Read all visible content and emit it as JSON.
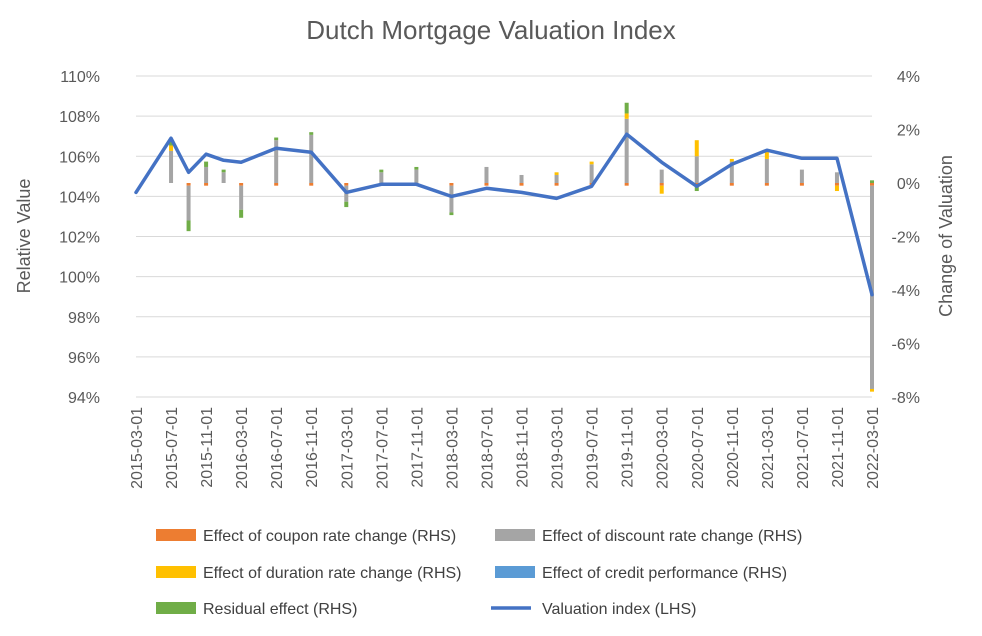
{
  "chart_data": {
    "type": "bar+line",
    "title": "Dutch Mortgage Valuation Index",
    "ylabel_left": "Relative Value",
    "ylabel_right": "Change of Valuation",
    "ylim_left": [
      94,
      110
    ],
    "ylim_right": [
      -8,
      4
    ],
    "left_ticks": [
      "94%",
      "96%",
      "98%",
      "100%",
      "102%",
      "104%",
      "106%",
      "108%",
      "110%"
    ],
    "left_tick_values": [
      94,
      96,
      98,
      100,
      102,
      104,
      106,
      108,
      110
    ],
    "right_ticks": [
      "-8%",
      "-6%",
      "-4%",
      "-2%",
      "0%",
      "2%",
      "4%"
    ],
    "right_tick_values": [
      -8,
      -6,
      -4,
      -2,
      0,
      2,
      4
    ],
    "x_tick_labels": [
      "2015-03-01",
      "2015-07-01",
      "2015-11-01",
      "2016-03-01",
      "2016-07-01",
      "2016-11-01",
      "2017-03-01",
      "2017-07-01",
      "2017-11-01",
      "2018-03-01",
      "2018-07-01",
      "2018-11-01",
      "2019-03-01",
      "2019-07-01",
      "2019-11-01",
      "2020-03-01",
      "2020-07-01",
      "2020-11-01",
      "2021-03-01",
      "2021-07-01",
      "2021-11-01",
      "2022-03-01"
    ],
    "categories": [
      "2015-03-01",
      "2015-05-01",
      "2015-07-01",
      "2015-09-01",
      "2015-11-01",
      "2016-01-01",
      "2016-03-01",
      "2016-05-01",
      "2016-07-01",
      "2016-09-01",
      "2016-11-01",
      "2017-01-01",
      "2017-03-01",
      "2017-05-01",
      "2017-07-01",
      "2017-09-01",
      "2017-11-01",
      "2018-01-01",
      "2018-03-01",
      "2018-05-01",
      "2018-07-01",
      "2018-09-01",
      "2018-11-01",
      "2019-01-01",
      "2019-03-01",
      "2019-05-01",
      "2019-07-01",
      "2019-09-01",
      "2019-11-01",
      "2020-01-01",
      "2020-03-01",
      "2020-05-01",
      "2020-07-01",
      "2020-09-01",
      "2020-11-01",
      "2021-01-01",
      "2021-03-01",
      "2021-05-01",
      "2021-07-01",
      "2021-09-01",
      "2021-11-01",
      "2022-01-01",
      "2022-03-01"
    ],
    "series": [
      {
        "name": "Effect of coupon rate change (RHS)",
        "color": "#ED7D31",
        "values": [
          0,
          0,
          -0.0,
          -0.1,
          -0.1,
          0.0,
          -0.1,
          0,
          -0.1,
          0,
          -0.1,
          0,
          -0.1,
          0,
          -0.1,
          0,
          -0.1,
          0,
          -0.1,
          0,
          -0.1,
          0,
          -0.1,
          0,
          -0.1,
          0,
          -0.1,
          0,
          -0.1,
          0,
          -0.1,
          0,
          -0.1,
          0,
          -0.1,
          0,
          -0.1,
          0,
          -0.1,
          0,
          -0.1,
          0,
          -0.1
        ]
      },
      {
        "name": "Effect of discount rate change (RHS)",
        "color": "#A5A5A5",
        "values": [
          0,
          0,
          1.2,
          -1.3,
          0.6,
          0.4,
          -0.9,
          0,
          1.6,
          0,
          1.8,
          0,
          -0.6,
          0,
          0.4,
          0,
          0.5,
          0,
          -1.0,
          0,
          0.6,
          0,
          0.3,
          0,
          0.3,
          0,
          0.7,
          0,
          2.4,
          0,
          0.5,
          0,
          1.0,
          0,
          0.8,
          0,
          0.9,
          0,
          0.5,
          0,
          0.4,
          0,
          -7.6
        ]
      },
      {
        "name": "Effect of duration rate change (RHS)",
        "color": "#FFC000",
        "values": [
          0,
          0,
          0.2,
          0.0,
          0.0,
          0.0,
          0.0,
          0,
          0.0,
          0,
          0.0,
          0,
          0.0,
          0,
          0.0,
          0,
          0.0,
          0,
          0.0,
          0,
          0.0,
          0,
          0.0,
          0,
          0.1,
          0,
          0.1,
          0,
          0.2,
          0,
          -0.3,
          0,
          0.6,
          0,
          0.1,
          0,
          0.3,
          0,
          0.0,
          0,
          -0.2,
          0,
          -0.1
        ]
      },
      {
        "name": "Effect of credit performance (RHS)",
        "color": "#5B9BD5",
        "values": [
          0,
          0,
          0.0,
          0.0,
          0.0,
          0.0,
          0.0,
          0,
          0.0,
          0,
          0.0,
          0,
          0.0,
          0,
          0.0,
          0,
          0.0,
          0,
          0.0,
          0,
          0.0,
          0,
          0.0,
          0,
          0.0,
          0,
          0.0,
          0,
          0.0,
          0,
          0.0,
          0,
          0.0,
          0,
          0.0,
          0,
          0.0,
          0,
          0.0,
          0,
          0.0,
          0,
          0.0
        ]
      },
      {
        "name": "Residual effect (RHS)",
        "color": "#70AD47",
        "values": [
          0,
          0,
          0.2,
          -0.4,
          0.2,
          0.1,
          -0.3,
          0,
          0.1,
          0,
          0.1,
          0,
          -0.2,
          0,
          0.1,
          0,
          0.1,
          0,
          -0.1,
          0,
          0.0,
          0,
          0.0,
          0,
          0.0,
          0,
          0.0,
          0,
          0.4,
          0,
          0.0,
          0,
          -0.2,
          0,
          0.0,
          0,
          0.0,
          0,
          0.0,
          0,
          0.0,
          0,
          0.1
        ]
      }
    ],
    "line_series": {
      "name": "Valuation index (LHS)",
      "color": "#4472C4",
      "values": [
        104.2,
        null,
        106.9,
        105.2,
        106.1,
        105.8,
        105.7,
        null,
        106.4,
        null,
        106.2,
        null,
        104.2,
        null,
        104.6,
        null,
        104.6,
        null,
        104.0,
        null,
        104.4,
        null,
        104.2,
        null,
        103.9,
        null,
        104.5,
        null,
        107.1,
        null,
        105.7,
        null,
        104.5,
        null,
        105.6,
        null,
        106.3,
        null,
        105.9,
        null,
        105.9,
        null,
        99.1
      ]
    },
    "legend": "bottom"
  }
}
